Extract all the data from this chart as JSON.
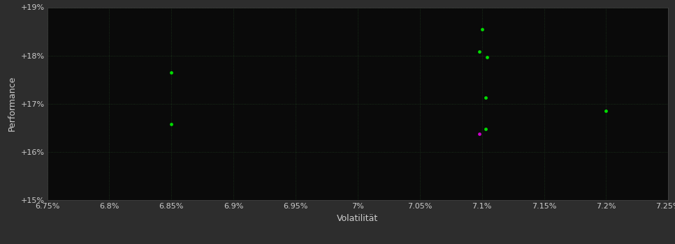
{
  "background_color": "#2d2d2d",
  "plot_bg_color": "#0a0a0a",
  "xlabel": "Volatilität",
  "ylabel": "Performance",
  "xlim": [
    0.0675,
    0.0725
  ],
  "ylim": [
    0.15,
    0.19
  ],
  "xtick_values": [
    0.0675,
    0.068,
    0.0685,
    0.069,
    0.0695,
    0.07,
    0.0705,
    0.071,
    0.0715,
    0.072,
    0.0725
  ],
  "xtick_labels": [
    "6.75%",
    "6.8%",
    "6.85%",
    "6.9%",
    "6.95%",
    "7%",
    "7.05%",
    "7.1%",
    "7.15%",
    "7.2%",
    "7.25%"
  ],
  "ytick_values": [
    0.15,
    0.16,
    0.17,
    0.18,
    0.19
  ],
  "ytick_labels": [
    "+15%",
    "+16%",
    "+17%",
    "+18%",
    "+19%"
  ],
  "green_points": [
    [
      0.0685,
      0.1765
    ],
    [
      0.0685,
      0.1657
    ],
    [
      0.071,
      0.1855
    ],
    [
      0.07098,
      0.1808
    ],
    [
      0.07104,
      0.1797
    ],
    [
      0.07103,
      0.1712
    ],
    [
      0.07103,
      0.1648
    ],
    [
      0.072,
      0.1685
    ]
  ],
  "magenta_points": [
    [
      0.07098,
      0.1637
    ]
  ],
  "point_size": 12,
  "green_color": "#00dd00",
  "magenta_color": "#cc00cc",
  "grid_color": "#1e3a1e",
  "tick_color": "#cccccc",
  "label_color": "#cccccc",
  "spine_color": "#444444"
}
